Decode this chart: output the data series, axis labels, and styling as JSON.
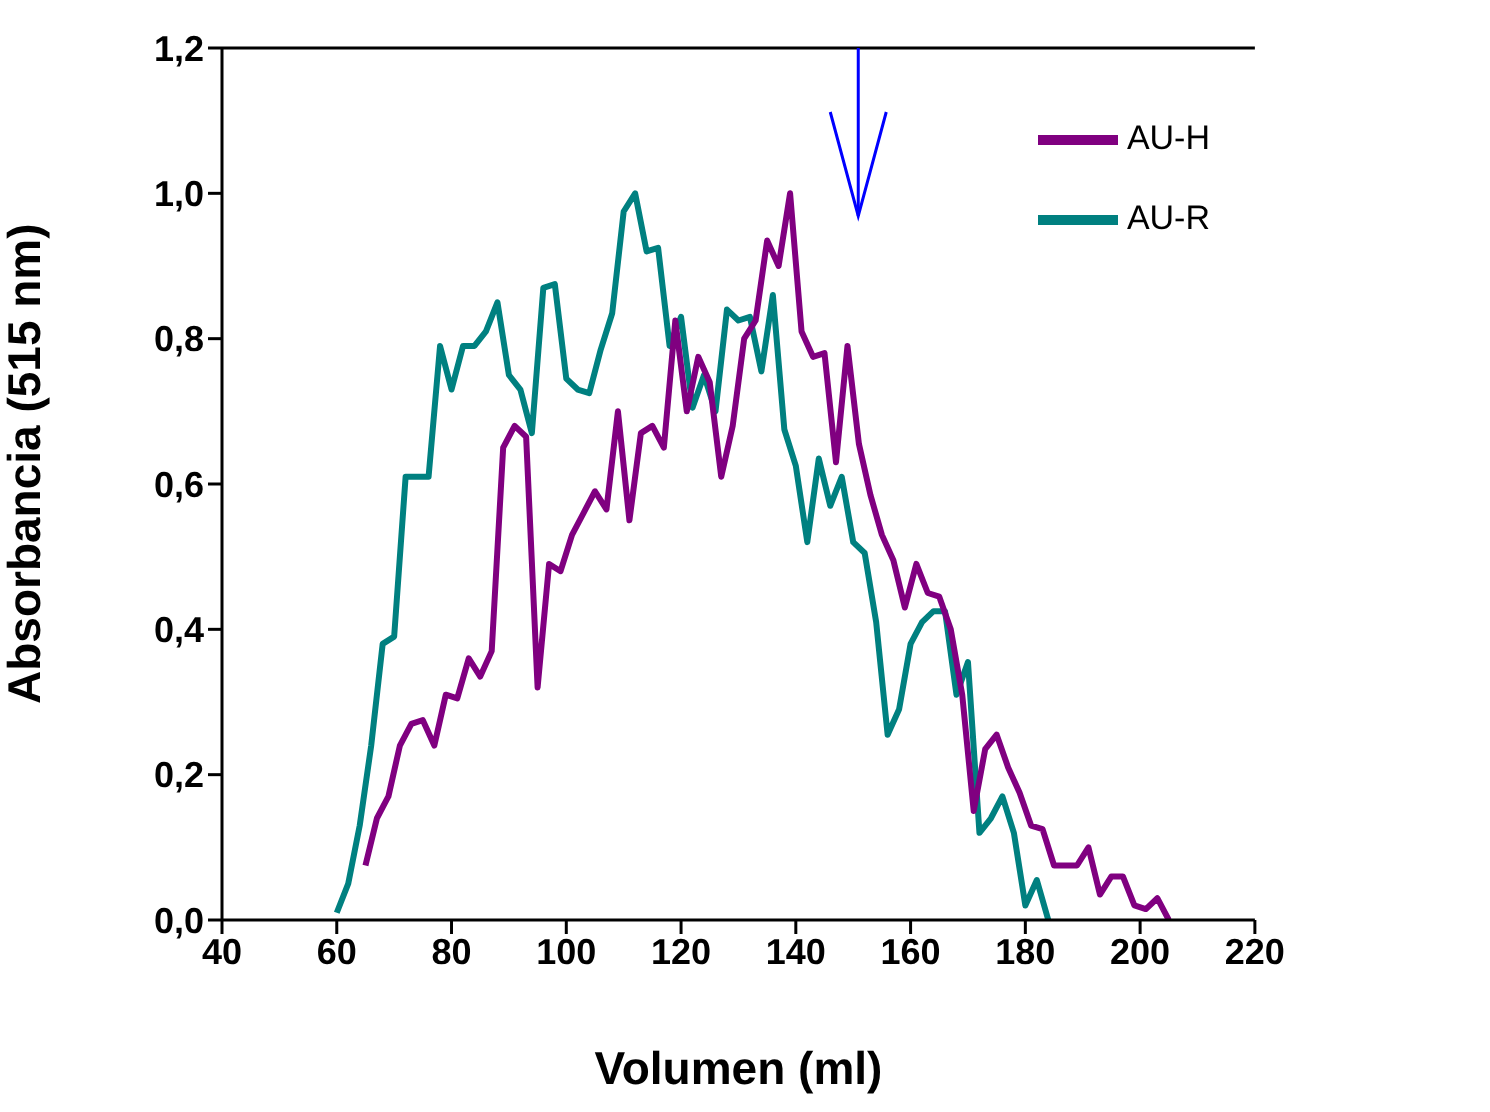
{
  "chart_data": {
    "type": "line",
    "xlabel": "Volumen (ml)",
    "ylabel": "Absorbancia (515 nm)",
    "xlim": [
      40,
      220
    ],
    "xticks": [
      40,
      60,
      80,
      100,
      120,
      140,
      160,
      180,
      200,
      220
    ],
    "ylim": [
      0,
      1.2
    ],
    "yticks": [
      {
        "value": 0,
        "label": "0,0"
      },
      {
        "value": 0.2,
        "label": "0,2"
      },
      {
        "value": 0.4,
        "label": "0,4"
      },
      {
        "value": 0.6,
        "label": "0,6"
      },
      {
        "value": 0.8,
        "label": "0,8"
      },
      {
        "value": 1,
        "label": "1,0"
      },
      {
        "value": 1.2,
        "label": "1,2"
      }
    ],
    "grid": false,
    "legend": "top right",
    "marker": "none",
    "line_style": "solid",
    "series": [
      {
        "name": "AU-R",
        "color": "#008080",
        "x": [
          60,
          62,
          64,
          66,
          68,
          70,
          72,
          74,
          76,
          78,
          80,
          82,
          84,
          86,
          88,
          90,
          92,
          94,
          96,
          98,
          100,
          102,
          104,
          106,
          108,
          110,
          112,
          114,
          116,
          118,
          120,
          122,
          124,
          126,
          128,
          130,
          132,
          134,
          136,
          138,
          140,
          142,
          144,
          146,
          148,
          150,
          152,
          154,
          156,
          158,
          160,
          162,
          164,
          166,
          168,
          170,
          172,
          174,
          176,
          178,
          180,
          182,
          184
        ],
        "values": [
          0.01,
          0.05,
          0.13,
          0.24,
          0.38,
          0.39,
          0.61,
          0.61,
          0.61,
          0.79,
          0.73,
          0.79,
          0.79,
          0.81,
          0.85,
          0.75,
          0.73,
          0.67,
          0.87,
          0.875,
          0.745,
          0.73,
          0.725,
          0.785,
          0.835,
          0.975,
          1.0,
          0.92,
          0.925,
          0.79,
          0.83,
          0.705,
          0.75,
          0.7,
          0.84,
          0.825,
          0.83,
          0.755,
          0.86,
          0.675,
          0.625,
          0.52,
          0.635,
          0.57,
          0.61,
          0.52,
          0.505,
          0.41,
          0.255,
          0.29,
          0.38,
          0.41,
          0.425,
          0.425,
          0.31,
          0.355,
          0.12,
          0.14,
          0.17,
          0.12,
          0.02,
          0.055,
          0.0
        ]
      },
      {
        "name": "AU-H",
        "color": "#800080",
        "x": [
          65,
          67,
          69,
          71,
          73,
          75,
          77,
          79,
          81,
          83,
          85,
          87,
          89,
          91,
          93,
          95,
          97,
          99,
          101,
          103,
          105,
          107,
          109,
          111,
          113,
          115,
          117,
          119,
          121,
          123,
          125,
          127,
          129,
          131,
          133,
          135,
          137,
          139,
          141,
          143,
          145,
          147,
          149,
          151,
          153,
          155,
          157,
          159,
          161,
          163,
          165,
          167,
          169,
          171,
          173,
          175,
          177,
          179,
          181,
          183,
          185,
          187,
          189,
          191,
          193,
          195,
          197,
          199,
          201,
          203,
          205
        ],
        "values": [
          0.075,
          0.14,
          0.17,
          0.24,
          0.27,
          0.275,
          0.24,
          0.31,
          0.305,
          0.36,
          0.335,
          0.37,
          0.65,
          0.68,
          0.665,
          0.32,
          0.49,
          0.48,
          0.53,
          0.56,
          0.59,
          0.565,
          0.7,
          0.55,
          0.67,
          0.68,
          0.65,
          0.825,
          0.7,
          0.775,
          0.74,
          0.61,
          0.68,
          0.8,
          0.825,
          0.935,
          0.9,
          1.0,
          0.81,
          0.775,
          0.78,
          0.63,
          0.79,
          0.655,
          0.585,
          0.53,
          0.495,
          0.43,
          0.49,
          0.45,
          0.445,
          0.4,
          0.31,
          0.15,
          0.235,
          0.255,
          0.21,
          0.175,
          0.13,
          0.125,
          0.075,
          0.075,
          0.075,
          0.1,
          0.035,
          0.06,
          0.06,
          0.02,
          0.015,
          0.03,
          0.0
        ]
      }
    ]
  }
}
